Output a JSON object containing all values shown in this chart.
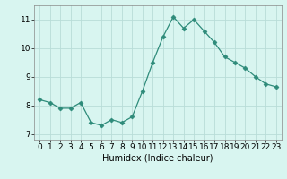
{
  "x": [
    0,
    1,
    2,
    3,
    4,
    5,
    6,
    7,
    8,
    9,
    10,
    11,
    12,
    13,
    14,
    15,
    16,
    17,
    18,
    19,
    20,
    21,
    22,
    23
  ],
  "y": [
    8.2,
    8.1,
    7.9,
    7.9,
    8.1,
    7.4,
    7.3,
    7.5,
    7.4,
    7.6,
    8.5,
    9.5,
    10.4,
    11.1,
    10.7,
    11.0,
    10.6,
    10.2,
    9.7,
    9.5,
    9.3,
    9.0,
    8.75,
    8.65
  ],
  "line_color": "#2e8b7a",
  "marker": "D",
  "marker_size": 2.5,
  "bg_color": "#d8f5f0",
  "grid_color": "#b8ddd8",
  "xlabel": "Humidex (Indice chaleur)",
  "ylim": [
    6.8,
    11.5
  ],
  "xlim": [
    -0.5,
    23.5
  ],
  "yticks": [
    7,
    8,
    9,
    10,
    11
  ],
  "xticks": [
    0,
    1,
    2,
    3,
    4,
    5,
    6,
    7,
    8,
    9,
    10,
    11,
    12,
    13,
    14,
    15,
    16,
    17,
    18,
    19,
    20,
    21,
    22,
    23
  ],
  "xtick_labels": [
    "0",
    "1",
    "2",
    "3",
    "4",
    "5",
    "6",
    "7",
    "8",
    "9",
    "10",
    "11",
    "12",
    "13",
    "14",
    "15",
    "16",
    "17",
    "18",
    "19",
    "20",
    "21",
    "22",
    "23"
  ],
  "xlabel_fontsize": 7,
  "tick_fontsize": 6.5
}
